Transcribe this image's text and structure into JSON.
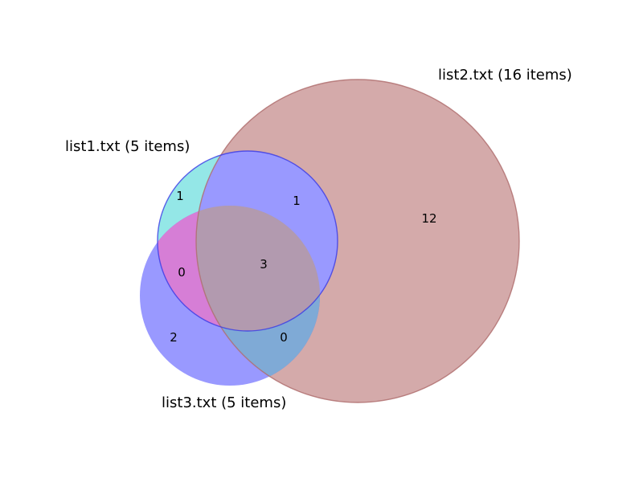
{
  "diagram": {
    "type": "venn3",
    "sets": [
      {
        "id": "list1",
        "label": "list1.txt (5 items)",
        "size": 5,
        "color": "#00c5c5"
      },
      {
        "id": "list2",
        "label": "list2.txt (16 items)",
        "size": 16,
        "color": "#b06464"
      },
      {
        "id": "list3",
        "label": "list3.txt (5 items)",
        "size": 5,
        "color": "#3333ff"
      }
    ],
    "regions": [
      {
        "id": "only-list1",
        "count": "1"
      },
      {
        "id": "list1-list2",
        "count": "1"
      },
      {
        "id": "only-list2",
        "count": "12"
      },
      {
        "id": "list1-list3",
        "count": "0"
      },
      {
        "id": "all-three",
        "count": "3"
      },
      {
        "id": "only-list3",
        "count": "2"
      },
      {
        "id": "list2-list3",
        "count": "0"
      }
    ],
    "colors": {
      "list1_fill": "#00c5c5",
      "list2_fill": "#b06464",
      "list3_fill": "#3333ff",
      "list1_list2_fill": "#9999ff",
      "list1_list3_fill": "#d67ed6",
      "list2_list3_fill": "#7faad6",
      "all_three_fill": "#b29aaf"
    }
  }
}
